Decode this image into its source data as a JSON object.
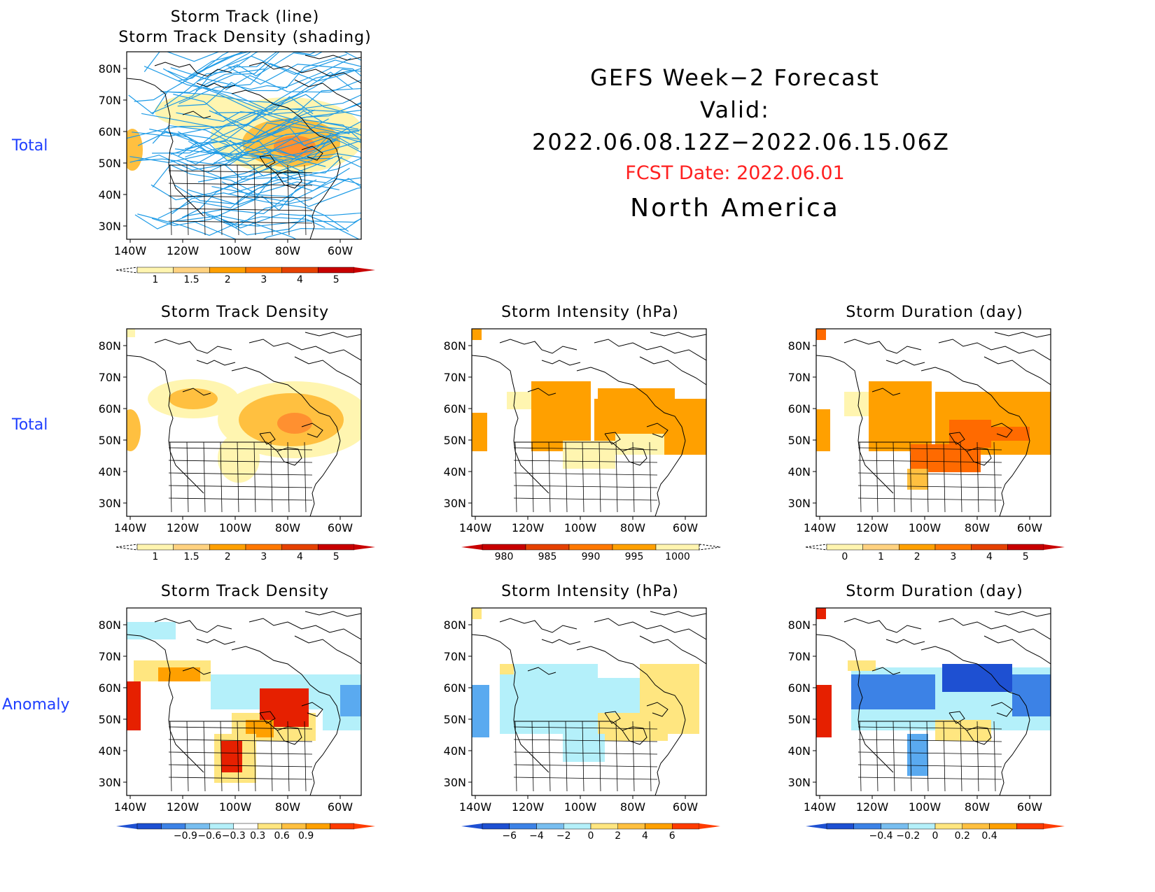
{
  "header": {
    "line1": "GEFS Week−2 Forecast",
    "line2": "Valid: 2022.06.08.12Z−2022.06.15.06Z",
    "fcst_date": "FCST Date: 2022.06.01",
    "region": "North America"
  },
  "row_labels": [
    "Total",
    "Total",
    "Anomaly"
  ],
  "axes": {
    "lon_ticks": [
      "140W",
      "120W",
      "100W",
      "80W",
      "60W"
    ],
    "lat_ticks": [
      "80N",
      "70N",
      "60N",
      "50N",
      "40N",
      "30N"
    ]
  },
  "colors": {
    "light_yellow": "#fff5b0",
    "yellow": "#ffe680",
    "light_orange": "#ffc040",
    "orange": "#ffa000",
    "dark_orange": "#ff6a00",
    "red": "#e62000",
    "dark_red": "#b40000",
    "light_blue": "#b4f0fa",
    "blue": "#5aaaf0",
    "mid_blue": "#3c82e6",
    "dark_blue": "#1e50d2",
    "track_line": "#1e9be6"
  },
  "panels": [
    {
      "id": "track-total",
      "title1": "Storm Track (line)",
      "title2": "Storm Track Density (shading)",
      "colorbar": {
        "labels": [
          "1",
          "1.5",
          "2",
          "3",
          "4",
          "5"
        ],
        "colors": [
          "#fff5b0",
          "#ffd280",
          "#ffa000",
          "#ff7800",
          "#e64100",
          "#c80000"
        ],
        "low_dash": true
      }
    },
    {
      "id": "density-total",
      "title1": "Storm Track Density",
      "colorbar": {
        "labels": [
          "1",
          "1.5",
          "2",
          "3",
          "4",
          "5"
        ],
        "colors": [
          "#fff5b0",
          "#ffd280",
          "#ffa000",
          "#ff7800",
          "#e64100",
          "#c80000"
        ],
        "low_dash": true
      }
    },
    {
      "id": "intensity-total",
      "title1": "Storm Intensity (hPa)",
      "colorbar": {
        "labels": [
          "980",
          "985",
          "990",
          "995",
          "1000"
        ],
        "colors": [
          "#c80000",
          "#e64100",
          "#ff7800",
          "#ffa000",
          "#fff5b0"
        ],
        "high_dash": true
      }
    },
    {
      "id": "duration-total",
      "title1": "Storm Duration (day)",
      "colorbar": {
        "labels": [
          "0",
          "1",
          "2",
          "3",
          "4",
          "5"
        ],
        "colors": [
          "#fff5b0",
          "#ffd280",
          "#ffa000",
          "#ff7800",
          "#e64100",
          "#c80000"
        ],
        "low_dash": true
      }
    },
    {
      "id": "density-anom",
      "title1": "Storm Track Density",
      "colorbar": {
        "labels": [
          "−0.9",
          "−0.6",
          "−0.3",
          "0.3",
          "0.6",
          "0.9"
        ],
        "colors": [
          "#1e50d2",
          "#3c82e6",
          "#78bef0",
          "#b4f0fa",
          "#ffffff",
          "#ffe680",
          "#ffc040",
          "#ffa000",
          "#ff3c00"
        ]
      }
    },
    {
      "id": "intensity-anom",
      "title1": "Storm Intensity (hPa)",
      "colorbar": {
        "labels": [
          "−6",
          "−4",
          "−2",
          "0",
          "2",
          "4",
          "6"
        ],
        "colors": [
          "#1e50d2",
          "#3c82e6",
          "#78bef0",
          "#b4f0fa",
          "#ffe680",
          "#ffc040",
          "#ffa000",
          "#ff3c00"
        ]
      }
    },
    {
      "id": "duration-anom",
      "title1": "Storm Duration (day)",
      "colorbar": {
        "labels": [
          "−0.4",
          "−0.2",
          "0",
          "0.2",
          "0.4"
        ],
        "colors": [
          "#1e50d2",
          "#3c82e6",
          "#78bef0",
          "#b4f0fa",
          "#ffe680",
          "#ffc040",
          "#ffa000",
          "#ff3c00"
        ]
      }
    }
  ]
}
